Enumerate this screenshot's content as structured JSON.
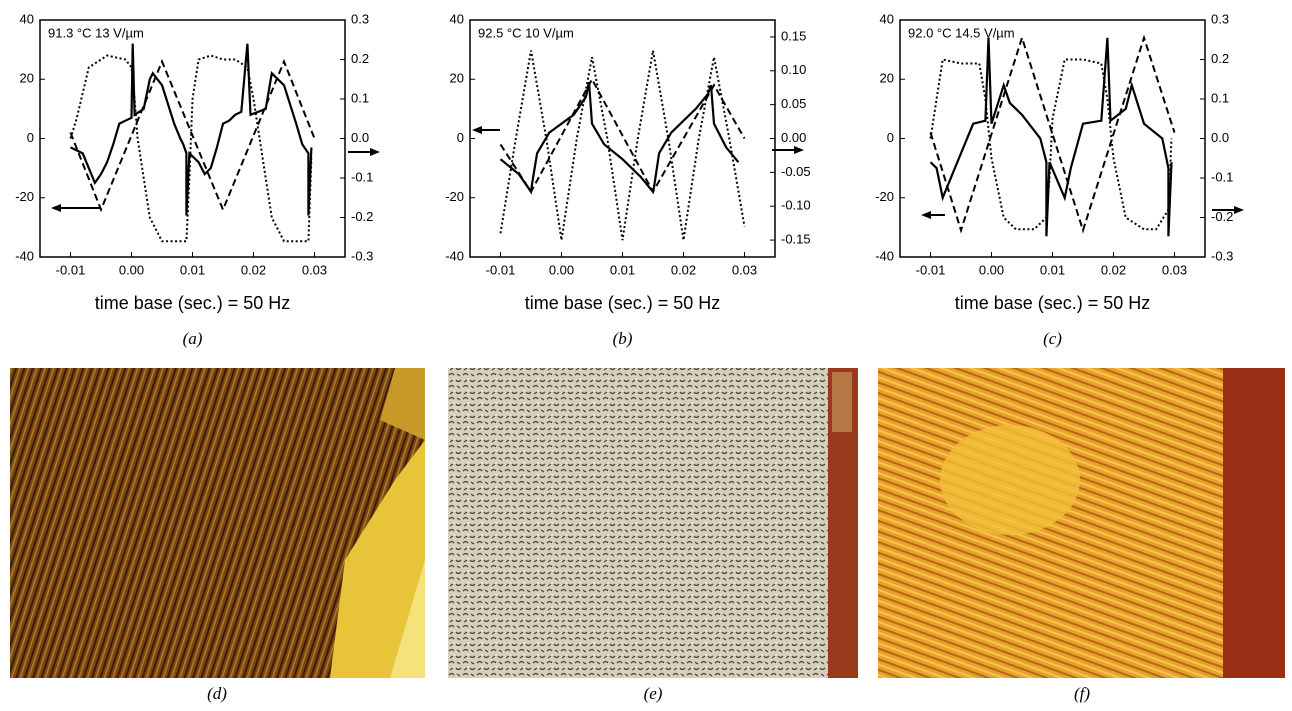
{
  "chart_data": [
    {
      "type": "line",
      "annotation": "91.3 °C 13 V/µm",
      "x_label": "time base (sec.) = 50 Hz",
      "panel_label": "(a)",
      "xlim": [
        -0.015,
        0.035
      ],
      "xticks": [
        -0.01,
        {
          "value": 0,
          "label": "0.00"
        },
        0.01,
        0.02,
        0.03
      ],
      "ylim": [
        -40,
        40
      ],
      "yticks": [
        -40,
        -20,
        0,
        20,
        40
      ],
      "y2lim": [
        -0.3,
        0.3
      ],
      "y2ticks": [
        -0.3,
        -0.2,
        -0.1,
        {
          "value": 0,
          "label": "0.0"
        },
        0.1,
        0.2,
        0.3
      ],
      "series": [
        {
          "color": "#000000",
          "dash": "solid",
          "x": [
            -0.01,
            -0.008,
            -0.007,
            -0.006,
            -0.005,
            -0.004,
            -0.003,
            -0.002,
            -0.001,
            0.0,
            0.0002,
            0.0005,
            0.002,
            0.003,
            0.0035,
            0.005,
            0.007,
            0.008,
            0.0085,
            0.009,
            0.009,
            0.0095,
            0.011,
            0.012,
            0.013,
            0.014,
            0.015,
            0.016,
            0.017,
            0.018,
            0.019,
            0.0195,
            0.022,
            0.023,
            0.025,
            0.027,
            0.028,
            0.029,
            0.029,
            0.0295
          ],
          "values": [
            -3,
            -5,
            -10,
            -15,
            -12,
            -8,
            -2,
            5,
            6,
            7,
            32,
            8,
            10,
            20,
            22,
            18,
            5,
            0,
            -2,
            -5,
            -26,
            -5,
            -8,
            -12,
            -10,
            -3,
            5,
            6,
            8,
            9,
            32,
            8,
            10,
            22,
            18,
            5,
            -2,
            -5,
            -26,
            -3
          ]
        },
        {
          "color": "#000000",
          "dash": "dashed",
          "x": [
            -0.01,
            -0.005,
            0.005,
            0.015,
            0.025,
            0.03
          ],
          "values": [
            2,
            -24,
            26,
            -24,
            26,
            0
          ]
        },
        {
          "color": "#000000",
          "dash": "dotted",
          "axis": "y2",
          "x": [
            -0.01,
            -0.009,
            -0.007,
            -0.005,
            -0.004,
            -0.001,
            0.0,
            0.0005,
            0.001,
            0.002,
            0.003,
            0.005,
            0.007,
            0.009,
            0.0095,
            0.01,
            0.011,
            0.013,
            0.015,
            0.017,
            0.019,
            0.02,
            0.021,
            0.022,
            0.023,
            0.025,
            0.027,
            0.029,
            0.0295
          ],
          "values": [
            0.0,
            0.05,
            0.18,
            0.2,
            0.21,
            0.2,
            0.18,
            0.1,
            0.0,
            -0.1,
            -0.2,
            -0.26,
            -0.26,
            -0.26,
            -0.1,
            0.1,
            0.2,
            0.21,
            0.2,
            0.2,
            0.18,
            0.1,
            0.0,
            -0.1,
            -0.2,
            -0.26,
            -0.26,
            -0.26,
            -0.05
          ]
        }
      ]
    },
    {
      "type": "line",
      "annotation": "92.5 °C 10 V/µm",
      "x_label": "time base (sec.) = 50 Hz",
      "panel_label": "(b)",
      "xlim": [
        -0.015,
        0.035
      ],
      "xticks": [
        -0.01,
        {
          "value": 0,
          "label": "0.00"
        },
        0.01,
        0.02,
        0.03
      ],
      "ylim": [
        -40,
        40
      ],
      "yticks": [
        -40,
        -20,
        0,
        20,
        40
      ],
      "y2lim": [
        -0.175,
        0.175
      ],
      "y2ticks": [
        -0.15,
        {
          "value": -0.1,
          "label": "-0.10"
        },
        -0.05,
        {
          "value": 0,
          "label": "0.00"
        },
        0.05,
        {
          "value": 0.1,
          "label": "0.10"
        },
        0.15
      ],
      "series": [
        {
          "color": "#000000",
          "dash": "solid",
          "x": [
            -0.01,
            -0.007,
            -0.005,
            -0.0048,
            -0.004,
            -0.002,
            0,
            0.002,
            0.004,
            0.0045,
            0.005,
            0.007,
            0.01,
            0.013,
            0.015,
            0.0152,
            0.016,
            0.018,
            0.02,
            0.022,
            0.024,
            0.0245,
            0.025,
            0.027,
            0.029
          ],
          "values": [
            -7,
            -12,
            -18,
            -15,
            -5,
            2,
            5,
            8,
            14,
            19,
            5,
            -2,
            -7,
            -13,
            -18,
            -16,
            -5,
            2,
            6,
            10,
            15,
            18,
            5,
            -3,
            -8
          ]
        },
        {
          "color": "#000000",
          "dash": "dashed",
          "x": [
            -0.01,
            -0.005,
            0.005,
            0.015,
            0.025,
            0.03
          ],
          "values": [
            -2,
            -18,
            20,
            -18,
            18,
            0
          ]
        },
        {
          "color": "#000000",
          "dash": "dotted",
          "axis": "y2",
          "x": [
            -0.01,
            -0.0075,
            -0.005,
            -0.0025,
            0,
            0.0025,
            0.005,
            0.0075,
            0.01,
            0.0125,
            0.015,
            0.0175,
            0.02,
            0.0225,
            0.025,
            0.0275,
            0.03
          ],
          "values": [
            -0.14,
            0,
            0.13,
            0,
            -0.15,
            0,
            0.12,
            0,
            -0.15,
            0,
            0.13,
            0,
            -0.15,
            0,
            0.12,
            0,
            -0.13
          ]
        }
      ]
    },
    {
      "type": "line",
      "annotation": "92.0 °C 14.5 V/µm",
      "x_label": "time base (sec.) = 50 Hz",
      "panel_label": "(c)",
      "xlim": [
        -0.015,
        0.035
      ],
      "xticks": [
        -0.01,
        {
          "value": 0,
          "label": "0.00"
        },
        0.01,
        0.02,
        0.03
      ],
      "ylim": [
        -40,
        40
      ],
      "yticks": [
        -40,
        -20,
        0,
        20,
        40
      ],
      "y2lim": [
        -0.3,
        0.3
      ],
      "y2ticks": [
        -0.3,
        -0.2,
        -0.1,
        {
          "value": 0,
          "label": "0.0"
        },
        0.1,
        0.2,
        0.3
      ],
      "series": [
        {
          "color": "#000000",
          "dash": "solid",
          "x": [
            -0.01,
            -0.009,
            -0.008,
            -0.007,
            -0.006,
            -0.005,
            -0.003,
            -0.001,
            -0.0005,
            0,
            0.002,
            0.003,
            0.005,
            0.008,
            0.009,
            0.009,
            0.0095,
            0.012,
            0.013,
            0.015,
            0.018,
            0.019,
            0.0195,
            0.022,
            0.023,
            0.025,
            0.028,
            0.029,
            0.029,
            0.0295
          ],
          "values": [
            -8,
            -10,
            -20,
            -15,
            -10,
            -5,
            5,
            6,
            34,
            5,
            18,
            12,
            8,
            0,
            -8,
            -33,
            -8,
            -20,
            -10,
            5,
            6,
            34,
            6,
            10,
            18,
            5,
            0,
            -10,
            -33,
            -8
          ]
        },
        {
          "color": "#000000",
          "dash": "dashed",
          "x": [
            -0.01,
            -0.005,
            0.005,
            0.015,
            0.025,
            0.03
          ],
          "values": [
            2,
            -31,
            34,
            -31,
            34,
            2
          ]
        },
        {
          "color": "#000000",
          "dash": "dotted",
          "axis": "y2",
          "x": [
            -0.01,
            -0.009,
            -0.008,
            -0.005,
            -0.002,
            -0.001,
            0,
            0.002,
            0.004,
            0.005,
            0.007,
            0.009,
            0.0095,
            0.01,
            0.012,
            0.015,
            0.018,
            0.019,
            0.02,
            0.022,
            0.025,
            0.027,
            0.029,
            0.0295
          ],
          "values": [
            0.0,
            0.1,
            0.2,
            0.19,
            0.19,
            0.1,
            -0.05,
            -0.2,
            -0.23,
            -0.23,
            -0.23,
            -0.2,
            -0.1,
            0.05,
            0.2,
            0.2,
            0.19,
            0.1,
            -0.05,
            -0.2,
            -0.23,
            -0.23,
            -0.18,
            0.0
          ]
        }
      ]
    }
  ],
  "micrographs": [
    {
      "label": "(d)"
    },
    {
      "label": "(e)"
    },
    {
      "label": "(f)"
    }
  ]
}
